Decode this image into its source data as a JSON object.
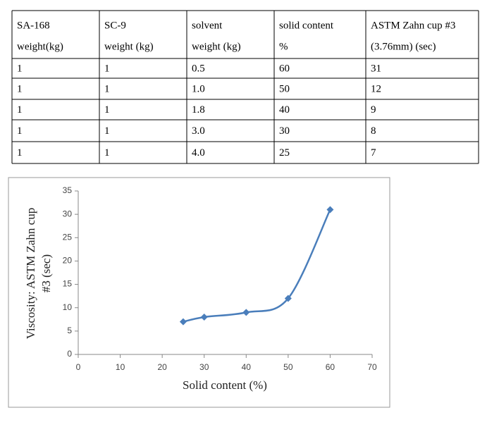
{
  "table": {
    "header": [
      [
        "SA-168",
        "weight(kg)"
      ],
      [
        "SC-9",
        "weight (kg)"
      ],
      [
        "solvent",
        "weight (kg)"
      ],
      [
        "solid content",
        "%"
      ],
      [
        "ASTM Zahn cup #3",
        "(3.76mm) (sec)"
      ]
    ],
    "rows": [
      [
        "1",
        "1",
        "0.5",
        "60",
        "31"
      ],
      [
        "1",
        "1",
        "1.0",
        "50",
        "12"
      ],
      [
        "1",
        "1",
        "1.8",
        "40",
        "9"
      ],
      [
        "1",
        "1",
        "3.0",
        "30",
        "8"
      ],
      [
        "1",
        "1",
        "4.0",
        "25",
        "7"
      ]
    ]
  },
  "chart_data": {
    "type": "line",
    "x": [
      25,
      30,
      40,
      50,
      60
    ],
    "values": [
      7,
      8,
      9,
      12,
      31
    ],
    "color": "#4a7ebb",
    "smooth": true,
    "marker": "diamond",
    "xlim": [
      0,
      70
    ],
    "xticks": [
      0,
      10,
      20,
      30,
      40,
      50,
      60,
      70
    ],
    "ylim": [
      0,
      35
    ],
    "yticks": [
      0,
      5,
      10,
      15,
      20,
      25,
      30,
      35
    ],
    "x_label": "Solid content (%)",
    "y_label": [
      "Viscosity: ASTM Zahn cup",
      "#3 (sec)"
    ],
    "grid": false
  }
}
